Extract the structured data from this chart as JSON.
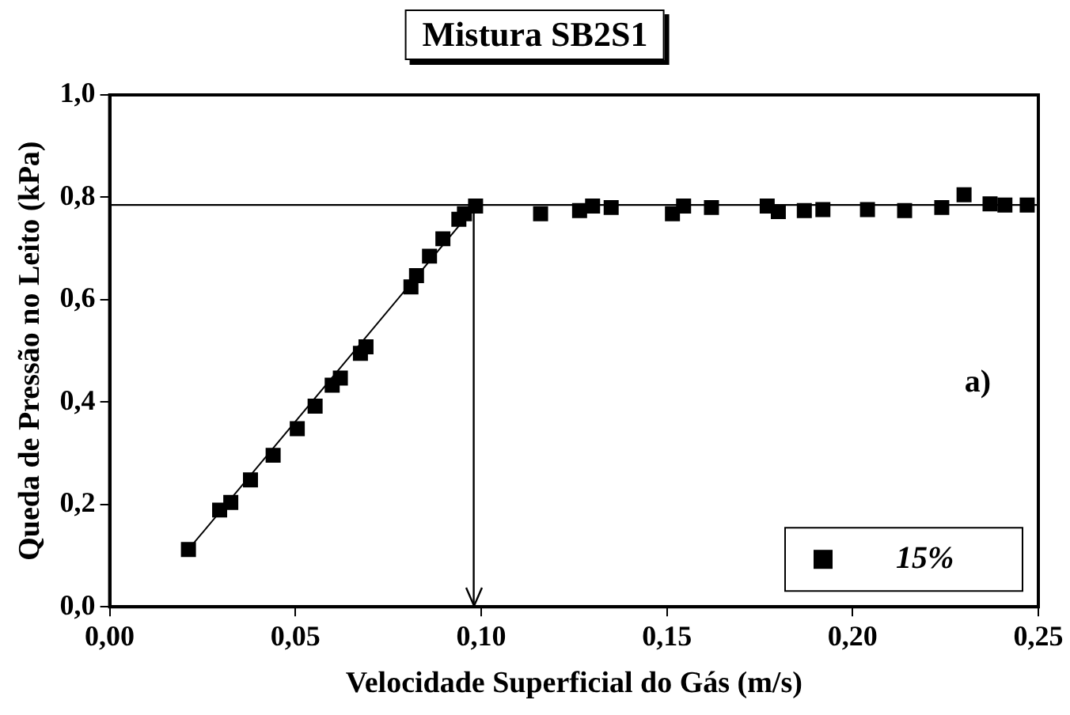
{
  "chart_data": {
    "type": "scatter",
    "title": "Mistura SB2S1",
    "xlabel": "Velocidade Superficial do Gás (m/s)",
    "ylabel": "Queda de Pressão no Leito (kPa)",
    "annotations": [
      "a)"
    ],
    "x": [
      0.0212,
      0.0296,
      0.0326,
      0.0379,
      0.044,
      0.0505,
      0.0553,
      0.0599,
      0.0621,
      0.0675,
      0.069,
      0.0811,
      0.0826,
      0.0861,
      0.0897,
      0.094,
      0.0955,
      0.0985,
      0.116,
      0.1265,
      0.13,
      0.135,
      0.1515,
      0.1545,
      0.162,
      0.177,
      0.18,
      0.187,
      0.192,
      0.204,
      0.214,
      0.224,
      0.23,
      0.237,
      0.241,
      0.247
    ],
    "series": [
      {
        "name": "15%",
        "color": "#000000",
        "marker": "square",
        "values": [
          0.112,
          0.189,
          0.204,
          0.248,
          0.296,
          0.348,
          0.392,
          0.433,
          0.447,
          0.495,
          0.508,
          0.625,
          0.647,
          0.685,
          0.719,
          0.757,
          0.768,
          0.783,
          0.768,
          0.774,
          0.783,
          0.78,
          0.768,
          0.783,
          0.78,
          0.783,
          0.772,
          0.774,
          0.776,
          0.776,
          0.774,
          0.78,
          0.805,
          0.787,
          0.785,
          0.785
        ]
      },
      {
        "type": "line",
        "color": "#000000",
        "marker": "none",
        "x": [
          0.0212,
          0.0985
        ],
        "values": [
          0.112,
          0.783
        ]
      }
    ],
    "ref_lines": [
      {
        "axis": "y",
        "value": 0.785,
        "color": "#000000"
      },
      {
        "axis": "x",
        "value": 0.098,
        "color": "#000000"
      }
    ],
    "xlim": [
      0,
      0.25
    ],
    "xticks": [
      {
        "value": 0,
        "label": "0,00"
      },
      {
        "value": 0.05,
        "label": "0,05"
      },
      {
        "value": 0.1,
        "label": "0,10"
      },
      {
        "value": 0.15,
        "label": "0,15"
      },
      {
        "value": 0.2,
        "label": "0,20"
      },
      {
        "value": 0.25,
        "label": "0,25"
      }
    ],
    "ylim": [
      0,
      1
    ],
    "yticks": [
      {
        "value": 0,
        "label": "0,0"
      },
      {
        "value": 0.2,
        "label": "0,2"
      },
      {
        "value": 0.4,
        "label": "0,4"
      },
      {
        "value": 0.6,
        "label": "0,6"
      },
      {
        "value": 0.8,
        "label": "0,8"
      },
      {
        "value": 1,
        "label": "1,0"
      }
    ],
    "grid": false,
    "legend": "bottom right"
  }
}
